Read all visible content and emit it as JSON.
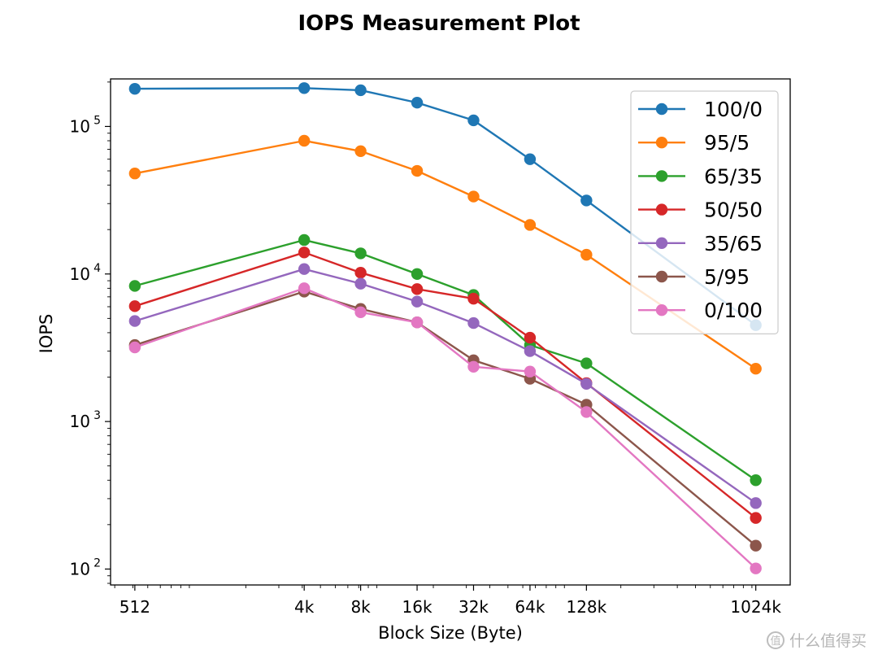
{
  "chart_data": {
    "type": "line",
    "title": "IOPS Measurement Plot",
    "xlabel": "Block Size (Byte)",
    "ylabel": "IOPS",
    "x_scale": "log2",
    "y_scale": "log10",
    "x": [
      512,
      4096,
      8192,
      16384,
      32768,
      65536,
      131072,
      1048576
    ],
    "x_tick_labels": [
      "512",
      "4k",
      "8k",
      "16k",
      "32k",
      "64k",
      "128k",
      "1024k"
    ],
    "y_ticks": [
      {
        "value": 100,
        "base": "10",
        "exp": "2"
      },
      {
        "value": 1000,
        "base": "10",
        "exp": "3"
      },
      {
        "value": 10000,
        "base": "10",
        "exp": "4"
      },
      {
        "value": 100000,
        "base": "10",
        "exp": "5"
      }
    ],
    "xlim": [
      380,
      1600000
    ],
    "ylim": [
      78,
      210000
    ],
    "legend_position": "upper-right",
    "series": [
      {
        "name": "100/0",
        "color": "#1f77b4",
        "values": [
          180000,
          182000,
          176000,
          145000,
          110000,
          60000,
          31500,
          4500
        ]
      },
      {
        "name": "95/5",
        "color": "#ff7f0e",
        "values": [
          48000,
          80000,
          68000,
          50000,
          33500,
          21500,
          13500,
          2280
        ]
      },
      {
        "name": "65/35",
        "color": "#2ca02c",
        "values": [
          8300,
          17000,
          13800,
          10000,
          7200,
          3300,
          2480,
          400
        ]
      },
      {
        "name": "50/50",
        "color": "#d62728",
        "values": [
          6050,
          14000,
          10200,
          7900,
          6800,
          3700,
          1820,
          222
        ]
      },
      {
        "name": "35/65",
        "color": "#9467bd",
        "values": [
          4800,
          10800,
          8600,
          6500,
          4650,
          3000,
          1800,
          280
        ]
      },
      {
        "name": "5/95",
        "color": "#8c564b",
        "values": [
          3300,
          7600,
          5800,
          4700,
          2600,
          1950,
          1300,
          144
        ]
      },
      {
        "name": "0/100",
        "color": "#e377c2",
        "values": [
          3180,
          8000,
          5500,
          4700,
          2350,
          2180,
          1160,
          101
        ]
      }
    ]
  },
  "watermark": {
    "icon": "值",
    "text": "什么值得买"
  }
}
